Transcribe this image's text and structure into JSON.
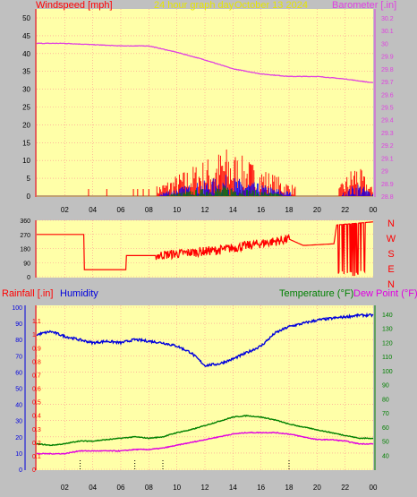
{
  "header": {
    "windspeed_label": "Windspeed [mph]",
    "title_24h": "24 hour graph day",
    "date_label": "October 13 2024",
    "barometer_label": "Barometer [.in]"
  },
  "lower_header": {
    "rainfall_label": "Rainfall [.in]",
    "humidity_label": "Humidity",
    "temperature_label": "Temperature (°F)",
    "dewpoint_label": "Dew Point (°F)"
  },
  "colors": {
    "plot_bg": "#ffffa8",
    "grid": "#ff9090",
    "wind": "#ff0000",
    "gust_blue": "#0000ff",
    "gust_green": "#008000",
    "barometer": "#e040e0",
    "direction": "#ff0000",
    "humidity": "#0000dd",
    "temperature": "#008000",
    "dewpoint": "#e000e0",
    "rain": "#000000",
    "title_yellow": "#e6e600"
  },
  "chart_data": [
    {
      "type": "line",
      "name": "wind-barometer",
      "x_ticks": [
        "02",
        "04",
        "06",
        "08",
        "10",
        "12",
        "14",
        "16",
        "18",
        "20",
        "22",
        "00"
      ],
      "left_axis": {
        "label": "Windspeed [mph]",
        "range": [
          0,
          50
        ],
        "ticks": [
          "0",
          "5",
          "10",
          "15",
          "20",
          "25",
          "30",
          "35",
          "40",
          "45",
          "50"
        ]
      },
      "right_axis": {
        "label": "Barometer [.in]",
        "range": [
          28.8,
          30.2
        ],
        "ticks": [
          "28.8",
          "28.9",
          "29",
          "29.1",
          "29.2",
          "29.3",
          "29.4",
          "29.5",
          "29.6",
          "29.7",
          "29.8",
          "29.9",
          "30",
          "30.1",
          "30.2"
        ]
      },
      "barometer_series": {
        "x_hours": [
          0,
          2,
          4,
          6,
          8,
          10,
          12,
          14,
          16,
          18,
          20,
          22,
          24
        ],
        "values": [
          30.0,
          30.0,
          29.99,
          29.98,
          29.98,
          29.93,
          29.87,
          29.8,
          29.76,
          29.74,
          29.74,
          29.72,
          29.69
        ]
      },
      "wind_activity_hours": [
        8.5,
        18.5
      ],
      "wind_late_activity_hours": [
        21.5,
        24
      ]
    },
    {
      "type": "line",
      "name": "wind-direction",
      "left_axis": {
        "range": [
          0,
          360
        ],
        "ticks": [
          "0",
          "90",
          "180",
          "270",
          "360"
        ]
      },
      "right_axis": {
        "ticks": [
          "N",
          "W",
          "S",
          "E",
          "N"
        ]
      },
      "direction_series": {
        "x_hours": [
          0,
          3.4,
          3.4,
          6.4,
          6.4,
          8.5,
          13,
          18,
          19,
          19.2,
          21.2,
          21.4,
          24
        ],
        "values": [
          270,
          270,
          45,
          45,
          135,
          135,
          170,
          240,
          200,
          200,
          210,
          330,
          350
        ]
      }
    },
    {
      "type": "line",
      "name": "temp-humidity-rain",
      "left_axis_rain": {
        "label": "Rainfall [.in]",
        "range": [
          0,
          1.2
        ],
        "ticks": [
          "0",
          "0.1",
          "0.2",
          "0.3",
          "0.4",
          "0.5",
          "0.6",
          "0.7",
          "0.8",
          "0.9",
          "1",
          "1.1"
        ]
      },
      "left_axis_humidity": {
        "label": "Humidity",
        "range": [
          0,
          100
        ],
        "ticks": [
          "0",
          "10",
          "20",
          "30",
          "40",
          "50",
          "60",
          "70",
          "80",
          "90",
          "100"
        ]
      },
      "right_axis": {
        "label": "Temperature (°F)",
        "range": [
          30,
          145
        ],
        "ticks": [
          "40",
          "50",
          "60",
          "70",
          "80",
          "90",
          "100",
          "110",
          "120",
          "130",
          "140"
        ]
      },
      "humidity_series": {
        "x_hours": [
          0,
          1,
          2,
          3,
          4,
          5,
          6,
          7,
          8,
          9,
          10,
          11,
          12,
          13,
          14,
          15,
          16,
          17,
          18,
          19,
          20,
          21,
          22,
          23,
          24
        ],
        "values": [
          83,
          85,
          82,
          80,
          78,
          79,
          78,
          80,
          79,
          78,
          76,
          72,
          64,
          65,
          68,
          72,
          76,
          84,
          88,
          90,
          92,
          93,
          94,
          95,
          95
        ]
      },
      "temperature_series": {
        "x_hours": [
          0,
          1,
          2,
          3,
          4,
          5,
          6,
          7,
          8,
          9,
          10,
          11,
          12,
          13,
          14,
          15,
          16,
          17,
          18,
          19,
          20,
          21,
          22,
          23,
          24
        ],
        "values": [
          48,
          47,
          48,
          50,
          50,
          51,
          52,
          53,
          52,
          53,
          56,
          58,
          61,
          64,
          67,
          68,
          67,
          65,
          62,
          60,
          58,
          56,
          54,
          52,
          52
        ]
      },
      "dewpoint_series": {
        "x_hours": [
          0,
          1,
          2,
          3,
          4,
          5,
          6,
          7,
          8,
          9,
          10,
          11,
          12,
          13,
          14,
          15,
          16,
          17,
          18,
          19,
          20,
          21,
          22,
          23,
          24
        ],
        "values": [
          41,
          41,
          41,
          43,
          43,
          43,
          43,
          44,
          44,
          45,
          47,
          49,
          51,
          53,
          55,
          56,
          56,
          56,
          55,
          53,
          51,
          51,
          50,
          48,
          48
        ]
      },
      "rain_ticks_hours": [
        3.1,
        7,
        9,
        18
      ]
    }
  ]
}
